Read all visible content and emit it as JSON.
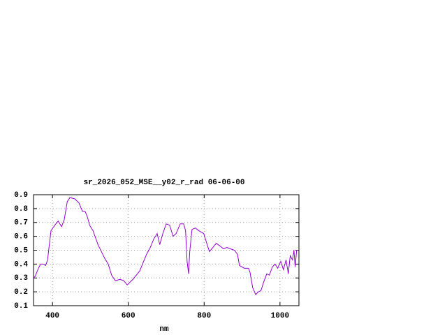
{
  "chart_data": {
    "type": "line",
    "title": "sr_2026_052_MSE__y02_r_rad 06-06-00",
    "x_label": "nm",
    "grid": true,
    "xlim": [
      350,
      1050
    ],
    "xticks": [
      400,
      600,
      800,
      1000
    ],
    "ylim": [
      0.1,
      0.9
    ],
    "yticks": [
      0.1,
      0.2,
      0.3,
      0.4,
      0.5,
      0.6,
      0.7,
      0.8,
      0.9
    ],
    "x": [
      350,
      354,
      363,
      369,
      376,
      382,
      387,
      396,
      406,
      415,
      424,
      431,
      439,
      446,
      459,
      470,
      479,
      486,
      492,
      498,
      507,
      520,
      538,
      547,
      556,
      566,
      578,
      588,
      597,
      612,
      621,
      630,
      648,
      658,
      667,
      676,
      683,
      691,
      700,
      709,
      718,
      726,
      737,
      746,
      751,
      755,
      759,
      762,
      768,
      777,
      786,
      799,
      808,
      814,
      823,
      832,
      842,
      851,
      860,
      869,
      880,
      888,
      893,
      906,
      917,
      921,
      928,
      936,
      943,
      950,
      957,
      965,
      972,
      980,
      987,
      994,
      1002,
      1009,
      1016,
      1022,
      1027,
      1033,
      1037,
      1040,
      1044,
      1048
    ],
    "series": [
      {
        "color": "#9400d3",
        "values": [
          0.3,
          0.31,
          0.37,
          0.4,
          0.4,
          0.39,
          0.43,
          0.64,
          0.68,
          0.71,
          0.67,
          0.72,
          0.85,
          0.88,
          0.87,
          0.84,
          0.78,
          0.78,
          0.74,
          0.68,
          0.64,
          0.54,
          0.44,
          0.4,
          0.32,
          0.28,
          0.29,
          0.28,
          0.25,
          0.29,
          0.32,
          0.35,
          0.47,
          0.52,
          0.58,
          0.62,
          0.54,
          0.62,
          0.69,
          0.68,
          0.6,
          0.62,
          0.69,
          0.69,
          0.64,
          0.42,
          0.33,
          0.49,
          0.65,
          0.66,
          0.64,
          0.62,
          0.54,
          0.49,
          0.52,
          0.55,
          0.53,
          0.51,
          0.52,
          0.51,
          0.5,
          0.47,
          0.39,
          0.37,
          0.37,
          0.34,
          0.23,
          0.18,
          0.2,
          0.21,
          0.27,
          0.33,
          0.32,
          0.38,
          0.4,
          0.37,
          0.42,
          0.36,
          0.43,
          0.33,
          0.46,
          0.43,
          0.5,
          0.38,
          0.5,
          0.5
        ]
      }
    ]
  }
}
